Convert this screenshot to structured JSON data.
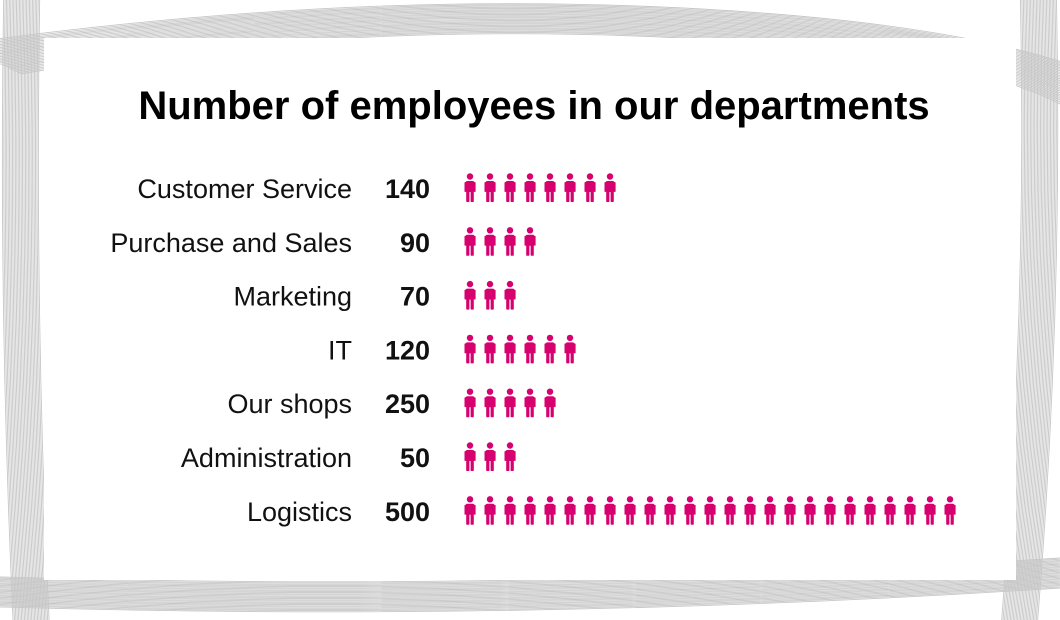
{
  "chart_data": {
    "type": "bar",
    "title": "Number of employees in our departments",
    "categories": [
      "Customer Service",
      "Purchase and Sales",
      "Marketing",
      "IT",
      "Our shops",
      "Administration",
      "Logistics"
    ],
    "values": [
      140,
      90,
      70,
      120,
      250,
      50,
      500
    ],
    "icons_shown": [
      8,
      4,
      3,
      6,
      5,
      3,
      25
    ],
    "icon": "person-icon",
    "icon_color": "#d6006f",
    "xlabel": "",
    "ylabel": "",
    "grid": false,
    "legend": "none"
  }
}
